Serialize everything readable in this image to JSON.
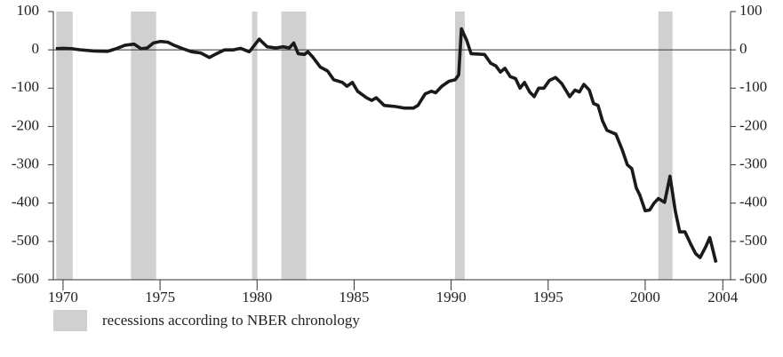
{
  "chart_data": {
    "type": "line",
    "x": [
      1969.63,
      1970.0,
      1970.46,
      1970.91,
      1971.6,
      1972.29,
      1972.74,
      1973.2,
      1973.66,
      1974.02,
      1974.34,
      1974.66,
      1975.03,
      1975.4,
      1975.72,
      1976.17,
      1976.63,
      1977.09,
      1977.54,
      1977.91,
      1978.32,
      1978.78,
      1979.15,
      1979.6,
      1980.11,
      1980.52,
      1980.97,
      1981.34,
      1981.66,
      1981.89,
      1982.12,
      1982.44,
      1982.62,
      1982.89,
      1983.26,
      1983.63,
      1983.95,
      1984.4,
      1984.63,
      1984.91,
      1985.18,
      1985.64,
      1985.91,
      1986.14,
      1986.55,
      1987.15,
      1987.6,
      1988.06,
      1988.29,
      1988.66,
      1988.98,
      1989.2,
      1989.52,
      1989.89,
      1990.21,
      1990.39,
      1990.53,
      1990.8,
      1991.03,
      1991.72,
      1992.04,
      1992.31,
      1992.54,
      1992.77,
      1993.05,
      1993.32,
      1993.55,
      1993.78,
      1994.05,
      1994.28,
      1994.51,
      1994.78,
      1995.06,
      1995.38,
      1995.7,
      1996.11,
      1996.38,
      1996.61,
      1996.84,
      1997.12,
      1997.34,
      1997.57,
      1997.8,
      1998.03,
      1998.49,
      1998.81,
      1999.08,
      1999.31,
      1999.54,
      1999.73,
      2000.0,
      2000.23,
      2000.46,
      2000.68,
      2001.0,
      2001.28,
      2001.55,
      2001.78,
      2002.05,
      2002.33,
      2002.6,
      2002.83,
      2003.11,
      2003.33,
      2003.65
    ],
    "values": [
      3,
      4,
      3,
      0,
      -3,
      -4,
      3,
      12,
      15,
      3,
      5,
      18,
      22,
      20,
      12,
      3,
      -5,
      -8,
      -20,
      -10,
      0,
      0,
      4,
      -5,
      28,
      8,
      5,
      8,
      5,
      18,
      -10,
      -12,
      -5,
      -20,
      -45,
      -55,
      -78,
      -85,
      -95,
      -85,
      -108,
      -125,
      -132,
      -125,
      -145,
      -148,
      -152,
      -152,
      -145,
      -115,
      -108,
      -112,
      -95,
      -82,
      -78,
      -65,
      55,
      25,
      -10,
      -12,
      -35,
      -42,
      -58,
      -48,
      -70,
      -75,
      -100,
      -85,
      -110,
      -122,
      -100,
      -100,
      -80,
      -72,
      -88,
      -122,
      -105,
      -110,
      -90,
      -105,
      -140,
      -145,
      -185,
      -210,
      -220,
      -260,
      -300,
      -310,
      -360,
      -380,
      -420,
      -418,
      -400,
      -388,
      -398,
      -330,
      -420,
      -475,
      -475,
      -505,
      -532,
      -542,
      -515,
      -490,
      -555
    ],
    "color": "#1a1a1a",
    "xlim": [
      1969.5,
      2004.4
    ],
    "xticks": [
      1970,
      1975,
      1980,
      1985,
      1990,
      1995,
      2000,
      2004
    ],
    "ylim": [
      -600,
      100
    ],
    "yticks": [
      -600,
      -500,
      -400,
      -300,
      -200,
      -100,
      0,
      100
    ],
    "y2lim": [
      -600,
      100
    ],
    "y2ticks": [
      -600,
      -500,
      -400,
      -300,
      -200,
      -100,
      0,
      100
    ],
    "zero_line": true,
    "recessions": [
      [
        1969.65,
        1970.5
      ],
      [
        1973.5,
        1974.8
      ],
      [
        1979.74,
        1980.01
      ],
      [
        1981.25,
        1982.53
      ],
      [
        1990.2,
        1990.7
      ],
      [
        2000.68,
        2001.41
      ]
    ],
    "recession_color": "#d0d0d0",
    "legend": {
      "label": "recessions according to NBER chronology"
    }
  }
}
